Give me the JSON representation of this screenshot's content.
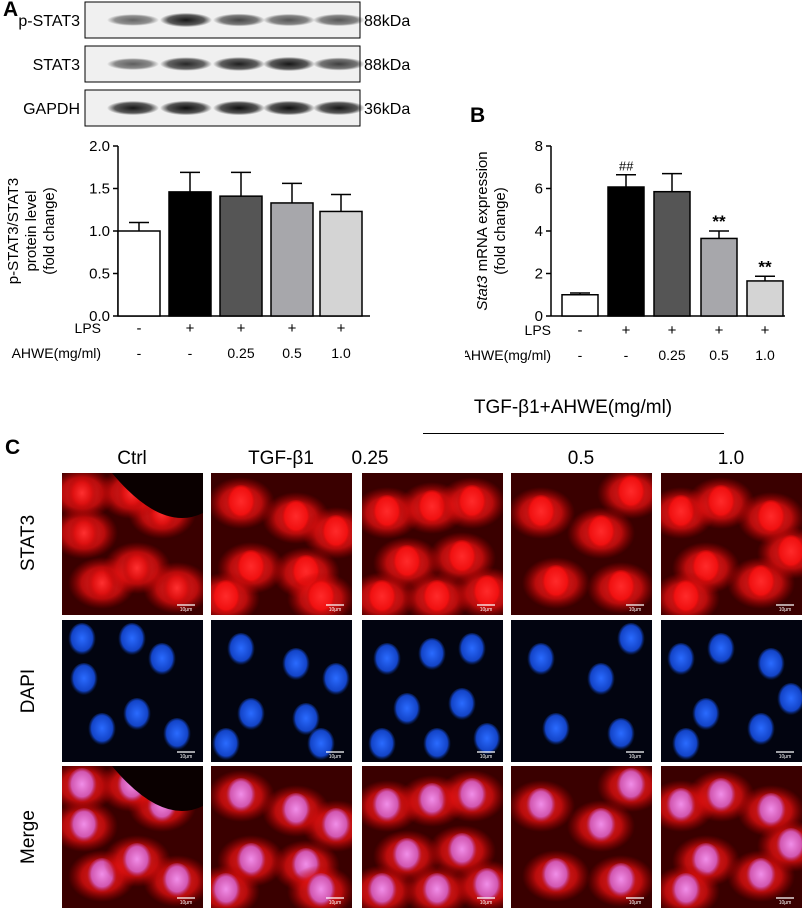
{
  "panel_a": {
    "letter": "A",
    "blots": [
      {
        "label": "p-STAT3",
        "size": "88kDa",
        "bands": [
          0.35,
          0.85,
          0.55,
          0.45,
          0.45
        ]
      },
      {
        "label": "STAT3",
        "size": "88kDa",
        "bands": [
          0.4,
          0.75,
          0.8,
          0.85,
          0.6
        ]
      },
      {
        "label": "GAPDH",
        "size": "36kDa",
        "bands": [
          0.85,
          0.9,
          0.9,
          0.9,
          0.85
        ]
      }
    ],
    "row_labels": {
      "lps": "LPS",
      "ahwe": "AHWE(mg/ml)"
    },
    "lps": [
      "-",
      "+",
      "+",
      "+",
      "+"
    ],
    "ahwe": [
      "-",
      "-",
      "0.25",
      "0.5",
      "1.0"
    ]
  },
  "panel_b": {
    "letter": "B",
    "row_labels": {
      "lps": "LPS",
      "ahwe": "AHWE(mg/ml)"
    },
    "lps": [
      "-",
      "+",
      "+",
      "+",
      "+"
    ],
    "ahwe": [
      "-",
      "-",
      "0.25",
      "0.5",
      "1.0"
    ],
    "annotations": [
      "",
      "##",
      "",
      "**",
      "**"
    ]
  },
  "panel_c": {
    "letter": "C",
    "group_header": "TGF-β1+AHWE(mg/ml)",
    "columns": [
      "Ctrl",
      "TGF-β1",
      "0.25",
      "0.5",
      "1.0"
    ],
    "rows": [
      "STAT3",
      "DAPI",
      "Merge"
    ],
    "scale_bar": "10μm"
  },
  "chart_data": [
    {
      "type": "bar",
      "ylabel": [
        "p-STAT3/STAT3",
        "protein level",
        "(fold change)"
      ],
      "ylim": [
        0,
        2.0
      ],
      "yticks": [
        "0.0",
        "0.5",
        "1.0",
        "1.5",
        "2.0"
      ],
      "values": [
        1.0,
        1.46,
        1.41,
        1.33,
        1.23
      ],
      "errors": [
        0.1,
        0.23,
        0.28,
        0.23,
        0.2
      ],
      "colors": [
        "#ffffff",
        "#000000",
        "#555555",
        "#a7a7ab",
        "#d4d4d4"
      ]
    },
    {
      "type": "bar",
      "ylabel": [
        "Stat3 mRNA expression",
        "(fold change)"
      ],
      "ylim": [
        0,
        8
      ],
      "yticks": [
        "0",
        "2",
        "4",
        "6",
        "8"
      ],
      "values": [
        1.0,
        6.07,
        5.85,
        3.65,
        1.65
      ],
      "errors": [
        0.08,
        0.58,
        0.85,
        0.35,
        0.22
      ],
      "colors": [
        "#ffffff",
        "#000000",
        "#555555",
        "#a7a7ab",
        "#d4d4d4"
      ]
    }
  ]
}
